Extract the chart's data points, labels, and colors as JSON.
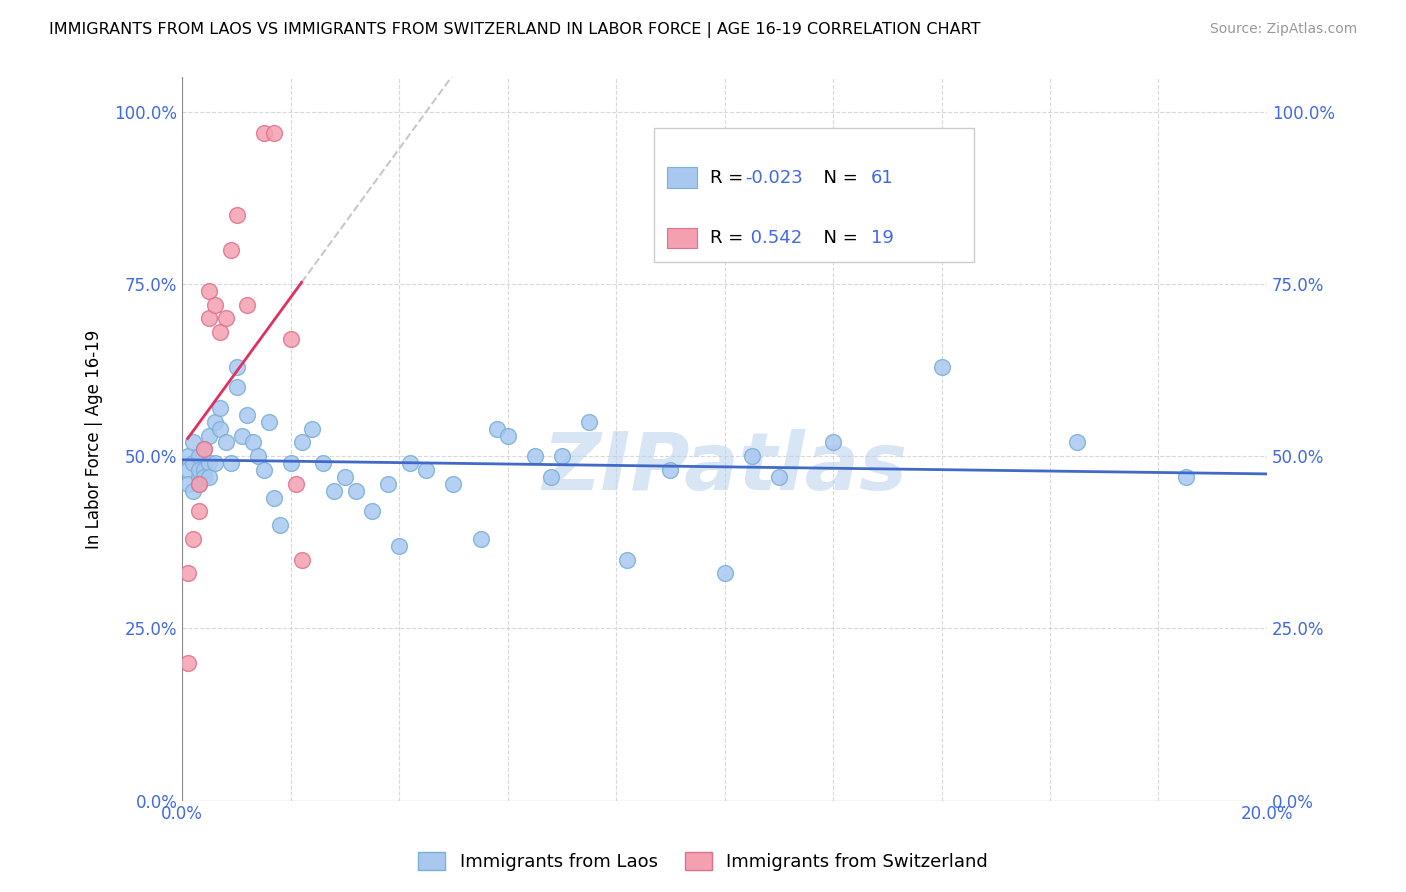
{
  "title": "IMMIGRANTS FROM LAOS VS IMMIGRANTS FROM SWITZERLAND IN LABOR FORCE | AGE 16-19 CORRELATION CHART",
  "source": "Source: ZipAtlas.com",
  "ylabel": "In Labor Force | Age 16-19",
  "xlim": [
    0.0,
    0.2
  ],
  "ylim": [
    0.0,
    1.05
  ],
  "ytick_labels": [
    "0.0%",
    "25.0%",
    "50.0%",
    "75.0%",
    "100.0%"
  ],
  "ytick_values": [
    0.0,
    0.25,
    0.5,
    0.75,
    1.0
  ],
  "xtick_labels": [
    "0.0%",
    "",
    "",
    "",
    "",
    "",
    "",
    "",
    "",
    "",
    "20.0%"
  ],
  "xtick_values": [
    0.0,
    0.02,
    0.04,
    0.06,
    0.08,
    0.1,
    0.12,
    0.14,
    0.16,
    0.18,
    0.2
  ],
  "laos_color": "#a8c8f0",
  "laos_edge_color": "#7bafd4",
  "switzerland_color": "#f4a0b0",
  "switzerland_edge_color": "#e07090",
  "trend_laos_color": "#4169c8",
  "trend_switzerland_color": "#e03060",
  "R_laos": -0.023,
  "N_laos": 61,
  "R_switzerland": 0.542,
  "N_switzerland": 19,
  "laos_x": [
    0.001,
    0.001,
    0.001,
    0.002,
    0.002,
    0.002,
    0.003,
    0.003,
    0.003,
    0.003,
    0.004,
    0.004,
    0.004,
    0.005,
    0.005,
    0.005,
    0.006,
    0.006,
    0.007,
    0.007,
    0.008,
    0.009,
    0.01,
    0.01,
    0.011,
    0.012,
    0.013,
    0.014,
    0.015,
    0.016,
    0.017,
    0.018,
    0.02,
    0.022,
    0.024,
    0.026,
    0.028,
    0.03,
    0.032,
    0.035,
    0.038,
    0.04,
    0.042,
    0.045,
    0.05,
    0.055,
    0.058,
    0.06,
    0.065,
    0.068,
    0.07,
    0.075,
    0.082,
    0.09,
    0.1,
    0.105,
    0.11,
    0.12,
    0.14,
    0.165,
    0.185
  ],
  "laos_y": [
    0.48,
    0.5,
    0.46,
    0.49,
    0.52,
    0.45,
    0.5,
    0.47,
    0.48,
    0.46,
    0.51,
    0.48,
    0.47,
    0.53,
    0.49,
    0.47,
    0.55,
    0.49,
    0.57,
    0.54,
    0.52,
    0.49,
    0.63,
    0.6,
    0.53,
    0.56,
    0.52,
    0.5,
    0.48,
    0.55,
    0.44,
    0.4,
    0.49,
    0.52,
    0.54,
    0.49,
    0.45,
    0.47,
    0.45,
    0.42,
    0.46,
    0.37,
    0.49,
    0.48,
    0.46,
    0.38,
    0.54,
    0.53,
    0.5,
    0.47,
    0.5,
    0.55,
    0.35,
    0.48,
    0.33,
    0.5,
    0.47,
    0.52,
    0.63,
    0.52,
    0.47
  ],
  "switzerland_x": [
    0.001,
    0.001,
    0.002,
    0.003,
    0.003,
    0.004,
    0.005,
    0.005,
    0.006,
    0.007,
    0.008,
    0.009,
    0.01,
    0.012,
    0.015,
    0.017,
    0.02,
    0.021,
    0.022
  ],
  "switzerland_y": [
    0.33,
    0.2,
    0.38,
    0.46,
    0.42,
    0.51,
    0.74,
    0.7,
    0.72,
    0.68,
    0.7,
    0.8,
    0.85,
    0.72,
    0.97,
    0.97,
    0.67,
    0.46,
    0.35
  ],
  "watermark": "ZIPatlas"
}
